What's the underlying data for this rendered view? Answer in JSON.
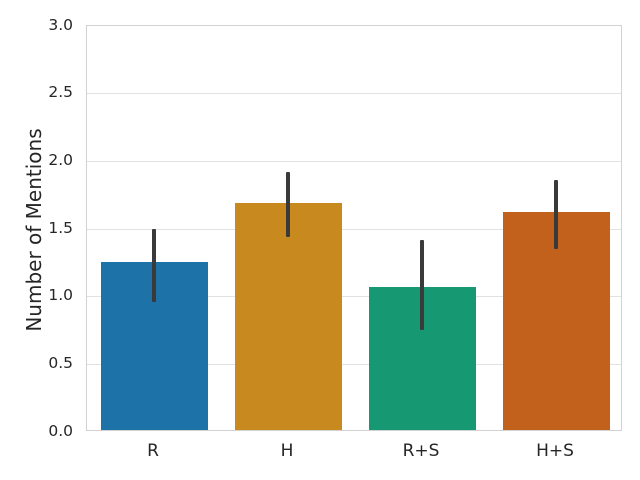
{
  "chart_data": {
    "type": "bar",
    "title": "",
    "xlabel": "",
    "ylabel": "Number of Mentions",
    "categories": [
      "R",
      "H",
      "R+S",
      "H+S"
    ],
    "values": [
      1.24,
      1.68,
      1.06,
      1.61
    ],
    "error_low": [
      0.96,
      1.44,
      0.75,
      1.35
    ],
    "error_high": [
      1.5,
      1.92,
      1.42,
      1.86
    ],
    "bar_colors": [
      "#1d73a8",
      "#c8891f",
      "#169873",
      "#c2611c"
    ],
    "error_color": "#3a3a3a",
    "ylim": [
      0.0,
      3.0
    ],
    "yticks": [
      "0.0",
      "0.5",
      "1.0",
      "1.5",
      "2.0",
      "2.5",
      "3.0"
    ],
    "grid": true,
    "grid_color": "#e2e2e2",
    "spine_color": "#d2d2d2",
    "text_color": "#262626",
    "background_color": "#ffffff",
    "legend": null
  }
}
